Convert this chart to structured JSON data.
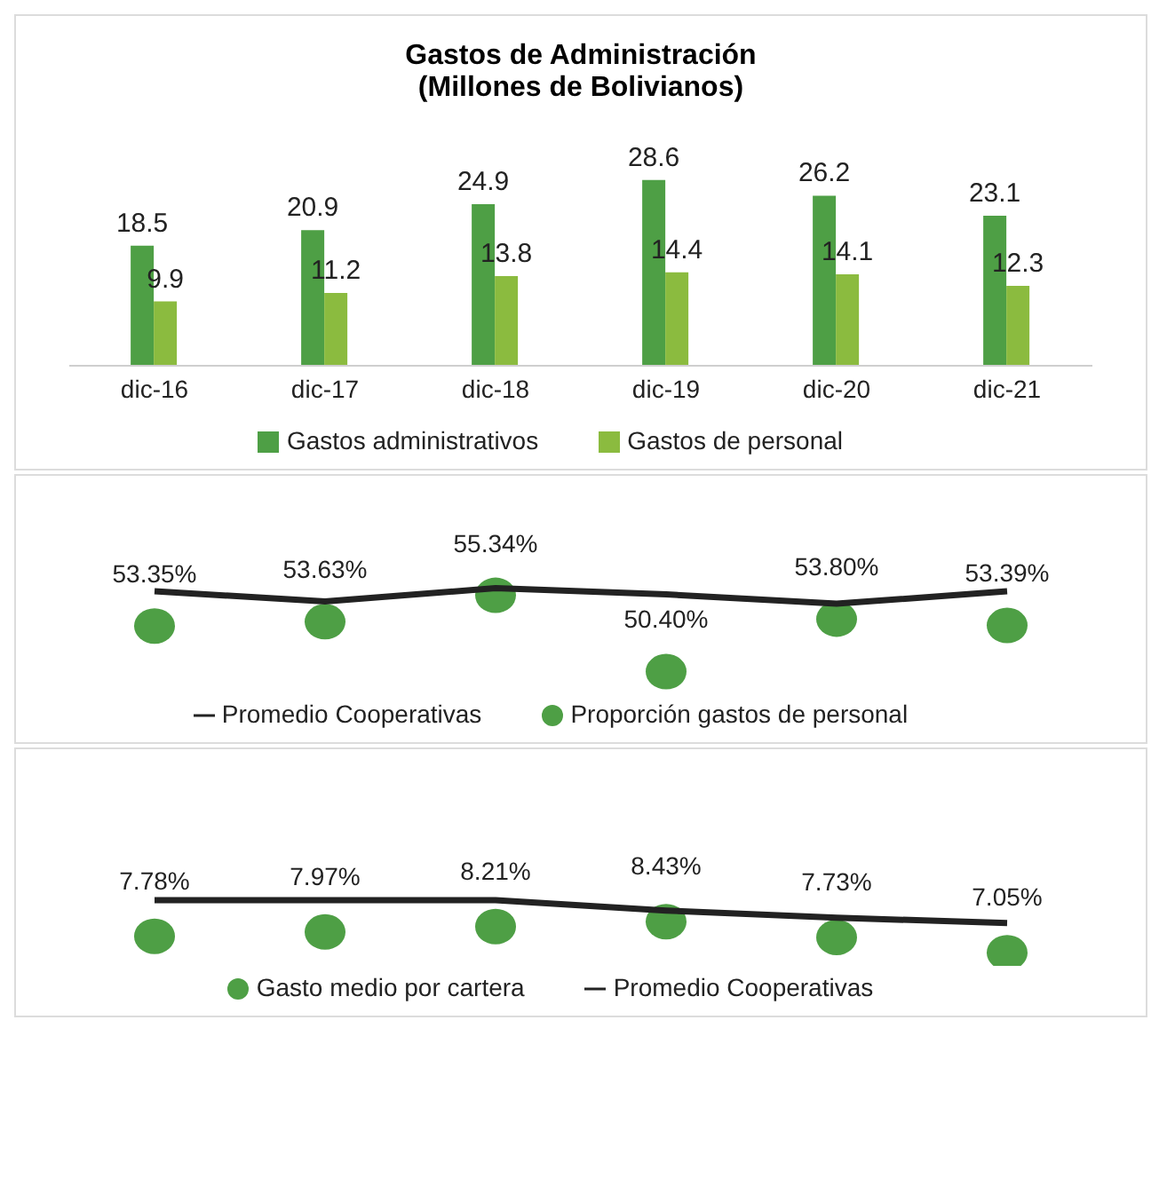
{
  "chart_data": [
    {
      "type": "bar",
      "title": "Gastos de Administración",
      "subtitle": "(Millones de Bolivianos)",
      "categories": [
        "dic-16",
        "dic-17",
        "dic-18",
        "dic-19",
        "dic-20",
        "dic-21"
      ],
      "series": [
        {
          "name": "Gastos administrativos",
          "color": "#4e9f45",
          "values": [
            18.5,
            20.9,
            24.9,
            28.6,
            26.2,
            23.1
          ]
        },
        {
          "name": "Gastos de personal",
          "color": "#8bbb3f",
          "values": [
            9.9,
            11.2,
            13.8,
            14.4,
            14.1,
            12.3
          ]
        }
      ],
      "legend": "bottom",
      "tick_labels": "x",
      "data_labels": true
    },
    {
      "type": "scatter",
      "categories": [
        null,
        null,
        null,
        null,
        null,
        null
      ],
      "series": [
        {
          "name": "Proporción gastos de personal",
          "color": "#4e9f45",
          "values": [
            53.35,
            53.63,
            55.34,
            50.4,
            53.8,
            53.39
          ],
          "value_labels": [
            "53.35%",
            "53.63%",
            "55.34%",
            "50.40%",
            "53.80%",
            "53.39%"
          ]
        },
        {
          "name": "Promedio Cooperativas",
          "type": "line",
          "color": "#222222",
          "values": [
            55.6,
            54.95,
            55.8,
            55.4,
            54.8,
            55.6
          ]
        }
      ],
      "legend": "bottom",
      "tick_labels": false
    },
    {
      "type": "scatter",
      "categories": [
        null,
        null,
        null,
        null,
        null,
        null
      ],
      "series": [
        {
          "name": "Gasto medio por cartera",
          "color": "#4e9f45",
          "values": [
            7.78,
            7.97,
            8.21,
            8.43,
            7.73,
            7.05
          ],
          "value_labels": [
            "7.78%",
            "7.97%",
            "8.21%",
            "8.43%",
            "7.73%",
            "7.05%"
          ]
        },
        {
          "name": "Promedio Cooperativas",
          "type": "line",
          "color": "#222222",
          "values": [
            9.38,
            9.38,
            9.38,
            8.92,
            8.6,
            8.37
          ]
        }
      ],
      "legend": "bottom",
      "tick_labels": false
    }
  ]
}
